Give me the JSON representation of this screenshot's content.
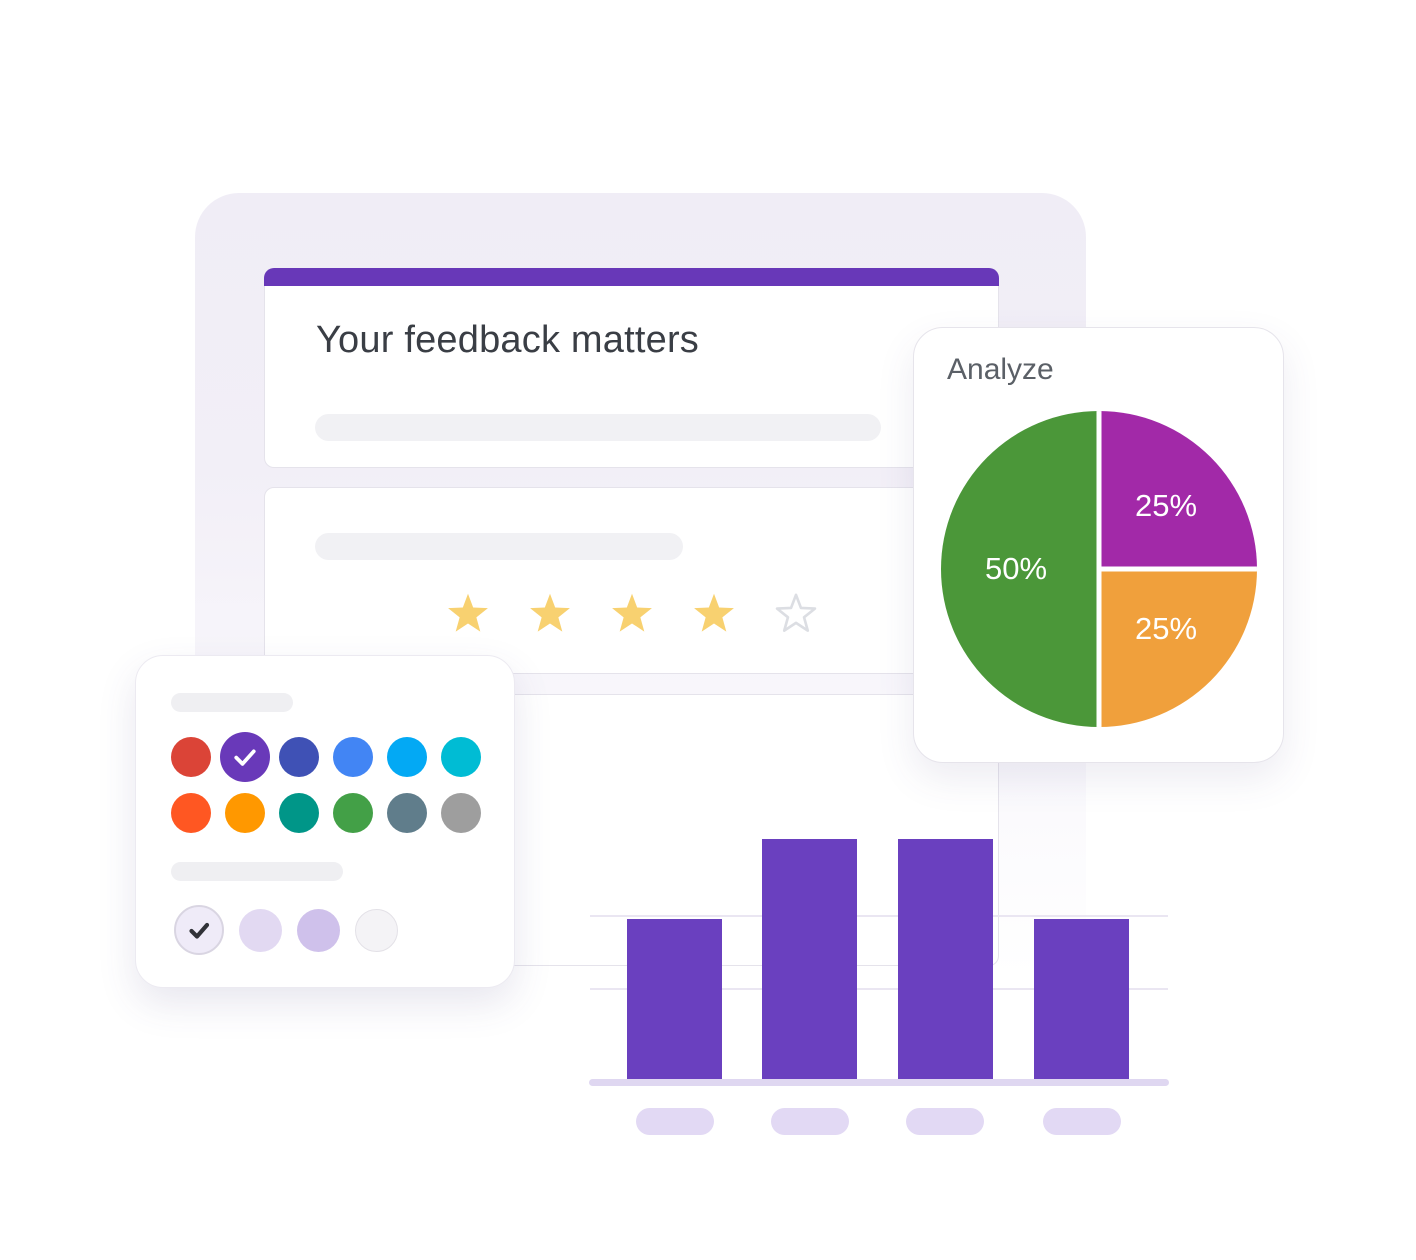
{
  "page": {
    "background": "#FFFFFF"
  },
  "form": {
    "title": "Your feedback matters",
    "accent_bar_color": "#6838B8",
    "placeholder_pill_color": "#F1F1F4",
    "rating": {
      "stars_total": 5,
      "stars_filled": 4,
      "star_fill_color": "#F8D170",
      "empty_star_outline_color": "#DCDEE3"
    }
  },
  "analyze_card": {
    "title": "Analyze"
  },
  "chart_data": [
    {
      "type": "pie",
      "title": "Analyze",
      "slices": [
        {
          "label": "25%",
          "value": 25,
          "color": "#A229A8",
          "position": "top-right"
        },
        {
          "label": "25%",
          "value": 25,
          "color": "#F0A03C",
          "position": "bottom-right"
        },
        {
          "label": "50%",
          "value": 50,
          "color": "#4B9739",
          "position": "left"
        }
      ],
      "divider_color": "#FFFFFF",
      "label_color": "#FFFFFF",
      "legend": "none"
    },
    {
      "type": "bar",
      "categories": [
        "",
        "",
        "",
        ""
      ],
      "values": [
        2,
        3,
        3,
        2
      ],
      "max_value": 3,
      "bar_color": "#6A40BF",
      "gridline_color": "#EAE6F2",
      "baseline_color": "#DFD7F1",
      "axis_pill_color": "#E2D9F4",
      "grid": true,
      "axis_labels_shown_as": "placeholder pills"
    }
  ],
  "theme_picker": {
    "palette_rows": [
      [
        "#DB4437",
        "#6939B9",
        "#3F51B5",
        "#4285F4",
        "#03A9F4",
        "#00BCD4"
      ],
      [
        "#FF5722",
        "#FF9800",
        "#009688",
        "#43A047",
        "#607D8B",
        "#9E9E9E"
      ]
    ],
    "selected_swatch": {
      "row": 0,
      "index": 1,
      "check_color": "#FFFFFF"
    },
    "background_options": [
      "#EFEBF8",
      "#E2D9F2",
      "#CFC1EB",
      "#F4F3F6"
    ],
    "selected_background": {
      "index": 0,
      "check_color": "#313238"
    }
  }
}
